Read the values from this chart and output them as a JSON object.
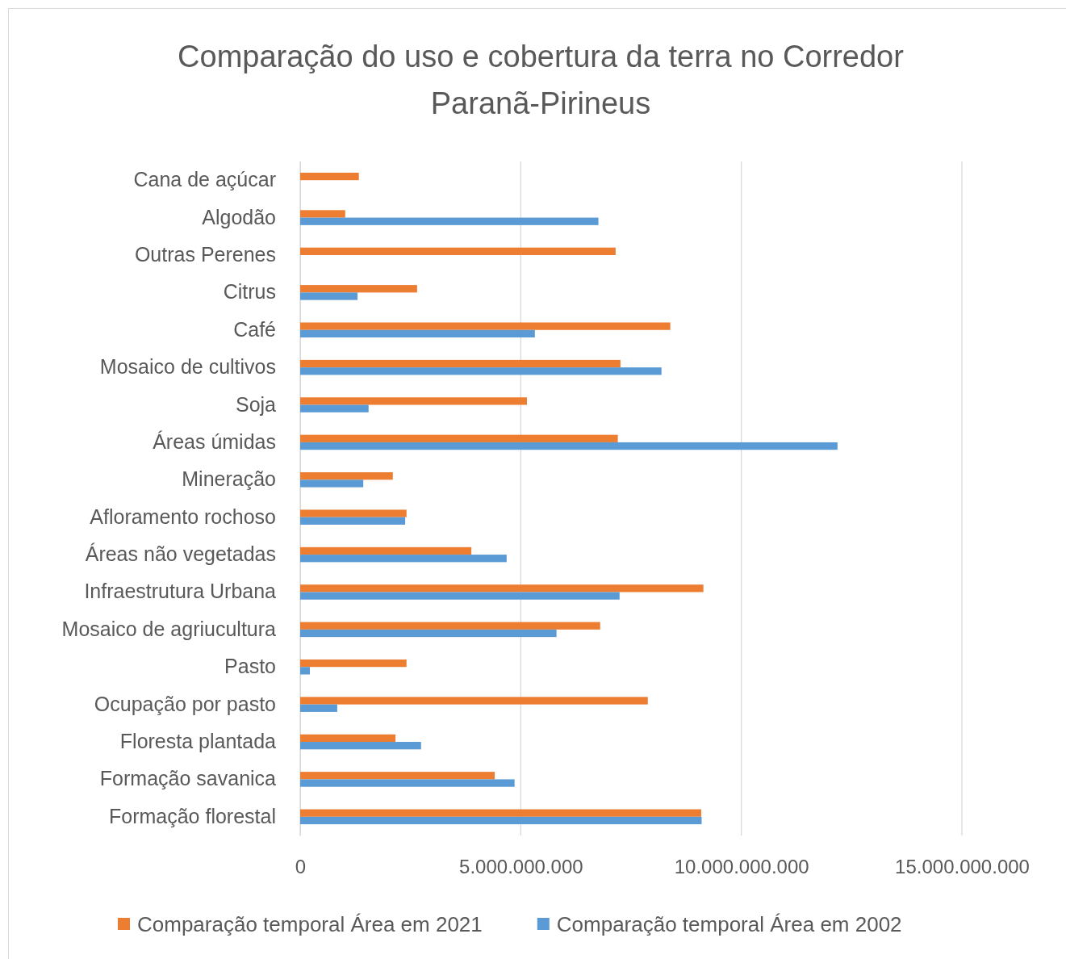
{
  "chart_data": {
    "type": "bar",
    "orientation": "horizontal",
    "title": "Comparação do uso e cobertura da terra no Corredor Paranã-Pirineus",
    "categories": [
      "Cana de açúcar",
      "Algodão",
      "Outras Perenes",
      "Citrus",
      "Café",
      "Mosaico de cultivos",
      "Soja",
      "Áreas úmidas",
      "Mineração",
      "Afloramento rochoso",
      "Áreas não vegetadas",
      "Infraestrutura Urbana",
      "Mosaico de agriucultura",
      "Pasto",
      "Ocupação por pasto",
      "Floresta plantada",
      "Formação savanica",
      "Formação florestal"
    ],
    "series": [
      {
        "name": "Comparação temporal Área em 2021",
        "color": "#ed7d31",
        "values": [
          1330000000,
          1020000000,
          7150000000,
          2650000000,
          8390000000,
          7260000000,
          5140000000,
          7200000000,
          2100000000,
          2410000000,
          3880000000,
          9140000000,
          6800000000,
          2410000000,
          7880000000,
          2160000000,
          4410000000,
          9090000000
        ]
      },
      {
        "name": "Comparação temporal Área em 2002",
        "color": "#5b9bd5",
        "values": [
          null,
          6760000000,
          null,
          1300000000,
          5320000000,
          8190000000,
          1550000000,
          12180000000,
          1430000000,
          2380000000,
          4680000000,
          7240000000,
          5810000000,
          220000000,
          840000000,
          2740000000,
          4860000000,
          9100000000
        ]
      }
    ],
    "xlim": [
      0,
      15000000000
    ],
    "xticks": [
      0,
      {
        "value": 5000000000,
        "label": "5.000.000.000"
      },
      {
        "value": 10000000000,
        "label": "10.000.000.000"
      },
      {
        "value": 15000000000,
        "label": "15.000.000.000"
      }
    ],
    "grid": "x",
    "legend": "bottom"
  }
}
